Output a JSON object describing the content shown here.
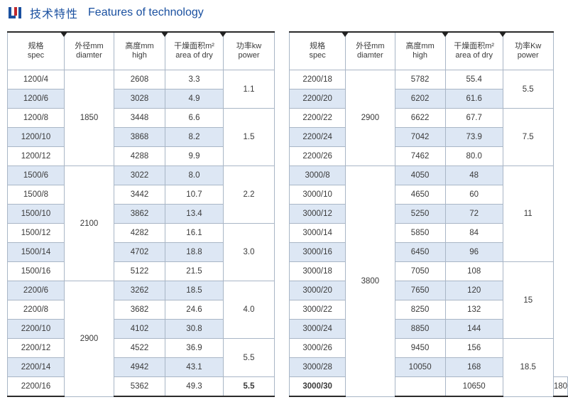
{
  "header": {
    "title_cn": "技术特性",
    "title_en": "Features of technology",
    "logo_color": "#1a50a0",
    "logo_accent": "#c0282d"
  },
  "columns": [
    {
      "cn": "规格",
      "en": "spec"
    },
    {
      "cn": "外径mm",
      "en": "diamter"
    },
    {
      "cn": "高度mm",
      "en": "high"
    },
    {
      "cn": "干燥面积m²",
      "en": "area of dry"
    },
    {
      "cn": "功率kw",
      "en": "power"
    }
  ],
  "columns_right": [
    {
      "cn": "规格",
      "en": "spec"
    },
    {
      "cn": "外径mm",
      "en": "diamter"
    },
    {
      "cn": "高度mm",
      "en": "high"
    },
    {
      "cn": "干燥面积m²",
      "en": "area of dry"
    },
    {
      "cn": "功率Kw",
      "en": "power"
    }
  ],
  "left_table": {
    "rows": [
      {
        "spec": "1200/4",
        "high": "2608",
        "area": "3.3"
      },
      {
        "spec": "1200/6",
        "high": "3028",
        "area": "4.9"
      },
      {
        "spec": "1200/8",
        "high": "3448",
        "area": "6.6"
      },
      {
        "spec": "1200/10",
        "high": "3868",
        "area": "8.2"
      },
      {
        "spec": "1200/12",
        "high": "4288",
        "area": "9.9"
      },
      {
        "spec": "1500/6",
        "high": "3022",
        "area": "8.0"
      },
      {
        "spec": "1500/8",
        "high": "3442",
        "area": "10.7"
      },
      {
        "spec": "1500/10",
        "high": "3862",
        "area": "13.4"
      },
      {
        "spec": "1500/12",
        "high": "4282",
        "area": "16.1"
      },
      {
        "spec": "1500/14",
        "high": "4702",
        "area": "18.8"
      },
      {
        "spec": "1500/16",
        "high": "5122",
        "area": "21.5"
      },
      {
        "spec": "2200/6",
        "high": "3262",
        "area": "18.5"
      },
      {
        "spec": "2200/8",
        "high": "3682",
        "area": "24.6"
      },
      {
        "spec": "2200/10",
        "high": "4102",
        "area": "30.8"
      },
      {
        "spec": "2200/12",
        "high": "4522",
        "area": "36.9"
      },
      {
        "spec": "2200/14",
        "high": "4942",
        "area": "43.1"
      },
      {
        "spec": "2200/16",
        "high": "5362",
        "area": "49.3"
      }
    ],
    "diameters": [
      "1850",
      "2100",
      "2900"
    ],
    "powers": [
      "1.1",
      "1.5",
      "2.2",
      "3.0",
      "4.0",
      "5.5",
      "5.5"
    ]
  },
  "right_table": {
    "rows": [
      {
        "spec": "2200/18",
        "high": "5782",
        "area": "55.4"
      },
      {
        "spec": "2200/20",
        "high": "6202",
        "area": "61.6"
      },
      {
        "spec": "2200/22",
        "high": "6622",
        "area": "67.7"
      },
      {
        "spec": "2200/24",
        "high": "7042",
        "area": "73.9"
      },
      {
        "spec": "2200/26",
        "high": "7462",
        "area": "80.0"
      },
      {
        "spec": "3000/8",
        "high": "4050",
        "area": "48"
      },
      {
        "spec": "3000/10",
        "high": "4650",
        "area": "60"
      },
      {
        "spec": "3000/12",
        "high": "5250",
        "area": "72"
      },
      {
        "spec": "3000/14",
        "high": "5850",
        "area": "84"
      },
      {
        "spec": "3000/16",
        "high": "6450",
        "area": "96"
      },
      {
        "spec": "3000/18",
        "high": "7050",
        "area": "108"
      },
      {
        "spec": "3000/20",
        "high": "7650",
        "area": "120"
      },
      {
        "spec": "3000/22",
        "high": "8250",
        "area": "132"
      },
      {
        "spec": "3000/24",
        "high": "8850",
        "area": "144"
      },
      {
        "spec": "3000/26",
        "high": "9450",
        "area": "156"
      },
      {
        "spec": "3000/28",
        "high": "10050",
        "area": "168"
      },
      {
        "spec": "3000/30",
        "high": "10650",
        "area": "180"
      }
    ],
    "diameters": [
      "2900",
      "3800"
    ],
    "powers": [
      "5.5",
      "7.5",
      "11",
      "15",
      "18.5"
    ]
  }
}
